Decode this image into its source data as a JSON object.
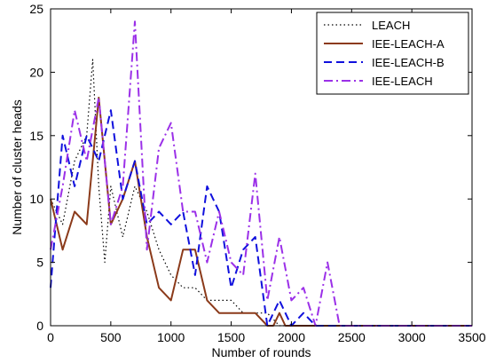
{
  "chart_data": {
    "type": "line",
    "title": "",
    "xlabel": "Number of rounds",
    "ylabel": "Number of cluster heads",
    "xlim": [
      0,
      3500
    ],
    "ylim": [
      0,
      25
    ],
    "xticks": [
      0,
      500,
      1000,
      1500,
      2000,
      2500,
      3000,
      3500
    ],
    "yticks": [
      0,
      5,
      10,
      15,
      20,
      25
    ],
    "grid": false,
    "legend_position": "top-right",
    "series": [
      {
        "name": "LEACH",
        "style": "dotted",
        "color": "#000000",
        "x": [
          0,
          100,
          200,
          300,
          350,
          400,
          450,
          500,
          600,
          700,
          800,
          900,
          1000,
          1100,
          1200,
          1300,
          1400,
          1500,
          1600,
          1700,
          1800,
          1900,
          2000,
          3500
        ],
        "y": [
          10,
          8,
          13,
          15,
          21,
          11,
          5,
          11,
          7,
          11,
          9,
          6,
          4,
          3,
          3,
          2,
          2,
          2,
          1,
          1,
          1,
          0,
          0,
          0
        ]
      },
      {
        "name": "IEE-LEACH-A",
        "style": "solid",
        "color": "#8B3A1A",
        "x": [
          0,
          100,
          200,
          300,
          400,
          500,
          600,
          700,
          800,
          900,
          1000,
          1100,
          1200,
          1300,
          1400,
          1500,
          1600,
          1700,
          1800,
          1850,
          1900,
          1950,
          2000,
          3500
        ],
        "y": [
          10,
          6,
          9,
          8,
          18,
          8,
          10,
          13,
          7,
          3,
          2,
          6,
          6,
          2,
          1,
          1,
          1,
          1,
          0,
          0,
          1,
          0,
          0,
          0
        ]
      },
      {
        "name": "IEE-LEACH-B",
        "style": "dashed",
        "color": "#1010DD",
        "x": [
          0,
          100,
          200,
          300,
          400,
          500,
          600,
          700,
          800,
          900,
          1000,
          1100,
          1200,
          1300,
          1400,
          1500,
          1600,
          1700,
          1800,
          1900,
          2000,
          2100,
          2200,
          2300,
          3500
        ],
        "y": [
          3,
          15,
          11,
          15,
          13,
          17,
          10,
          13,
          8,
          9,
          8,
          9,
          4,
          11,
          9,
          3,
          6,
          7,
          0,
          2,
          0,
          1,
          0,
          0,
          0
        ]
      },
      {
        "name": "IEE-LEACH",
        "style": "dashdot",
        "color": "#9B30E8",
        "x": [
          0,
          100,
          200,
          300,
          400,
          500,
          600,
          700,
          800,
          900,
          1000,
          1100,
          1200,
          1300,
          1400,
          1500,
          1600,
          1700,
          1800,
          1900,
          2000,
          2100,
          2200,
          2300,
          2400,
          2500,
          2600,
          3500
        ],
        "y": [
          6,
          11,
          17,
          13,
          18,
          8,
          11,
          24,
          6,
          14,
          16,
          9,
          9,
          5,
          9,
          5,
          4,
          12,
          2,
          7,
          2,
          3,
          0,
          5,
          0,
          0,
          0,
          0
        ]
      }
    ]
  }
}
